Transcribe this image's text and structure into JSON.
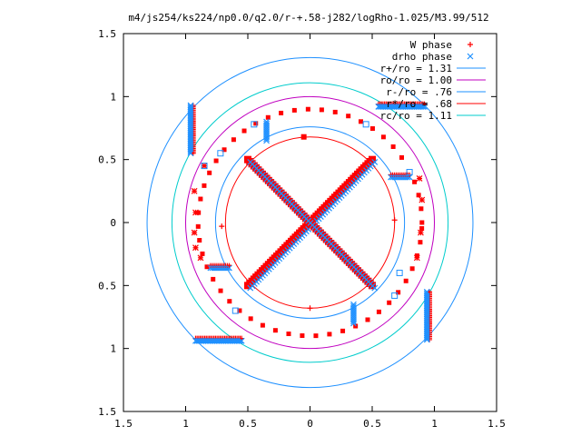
{
  "chart_data": {
    "type": "scatter",
    "title": "m4/js254/ks224/np0.0/q2.0/r-+.58-j282/logRho-1.025/M3.99/512",
    "xlim": [
      -1.5,
      1.5
    ],
    "ylim": [
      -1.5,
      1.5
    ],
    "x_tick_values": [
      -1.5,
      -1,
      -0.5,
      0,
      0.5,
      1,
      1.5
    ],
    "x_tick_labels": [
      "1.5",
      "1",
      "0.5",
      "0",
      "0.5",
      "1",
      "1.5"
    ],
    "y_tick_values": [
      1.5,
      1,
      0.5,
      0,
      -0.5,
      -1,
      -1.5
    ],
    "y_tick_labels": [
      "1.5",
      "1",
      "0.5",
      "0",
      "0.5",
      "1",
      "1.5"
    ],
    "grid": false,
    "legend_position": "top-right",
    "series": [
      {
        "name": "W phase",
        "kind": "points",
        "marker": "plus",
        "color": "#ff0000"
      },
      {
        "name": "drho phase",
        "kind": "points",
        "marker": "cross",
        "color": "#1e90ff"
      },
      {
        "name": "r+/ro = 1.31",
        "kind": "circle",
        "radius": 1.31,
        "color": "#1e90ff"
      },
      {
        "name": "ro/ro = 1.00",
        "kind": "circle",
        "radius": 1.0,
        "color": "#c000c0"
      },
      {
        "name": "r-/ro = .76",
        "kind": "circle",
        "radius": 0.76,
        "color": "#1e90ff"
      },
      {
        "name": "r*/ro = .68",
        "kind": "circle",
        "radius": 0.68,
        "color": "#ff0000"
      },
      {
        "name": "rc/ro = 1.11",
        "kind": "circle",
        "radius": 1.11,
        "color": "#00cccc"
      }
    ],
    "structures": {
      "diagonal_arms": [
        {
          "from": [
            -0.5,
            -0.5
          ],
          "to": [
            0.5,
            0.5
          ]
        },
        {
          "from": [
            -0.5,
            0.5
          ],
          "to": [
            0.5,
            -0.5
          ]
        }
      ],
      "red_dotted_arc_radius": 0.9,
      "vertical_segments": [
        {
          "x": -0.95,
          "y_from": 0.93,
          "y_to": 0.55
        },
        {
          "x": 0.95,
          "y_from": -0.93,
          "y_to": -0.55
        }
      ],
      "horizontal_segments": [
        {
          "y": 0.93,
          "x_from": 0.55,
          "x_to": 0.92
        },
        {
          "y": -0.93,
          "x_from": -0.92,
          "x_to": -0.55
        }
      ],
      "short_vertical_segments": [
        {
          "x": -0.35,
          "y_from": 0.8,
          "y_to": 0.65
        },
        {
          "x": 0.35,
          "y_from": -0.8,
          "y_to": -0.65
        }
      ],
      "short_horizontal_segments": [
        {
          "y": 0.36,
          "x_from": 0.65,
          "x_to": 0.8
        },
        {
          "y": -0.36,
          "x_from": -0.8,
          "x_to": -0.65
        }
      ]
    }
  }
}
